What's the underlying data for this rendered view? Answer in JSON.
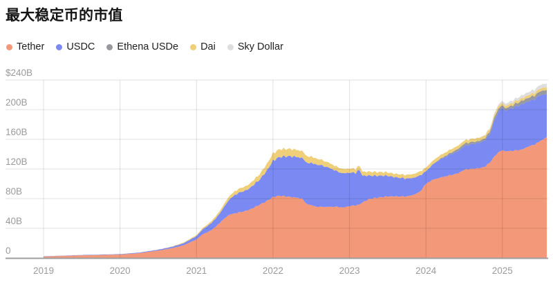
{
  "title": "最大稳定币的市值",
  "colors": {
    "grid": "rgba(0,0,0,0.12)",
    "baseline": "#9e9e9e",
    "tick_text": "#9b9b9b",
    "title_text": "#141414",
    "background": "#ffffff"
  },
  "chart_data": {
    "type": "area",
    "stacked": true,
    "title": "最大稳定币的市值",
    "unit": "billions USD",
    "legend_position": "top",
    "grid": true,
    "ylim": [
      0,
      240
    ],
    "xlim": [
      2019.0,
      2025.58
    ],
    "x": [
      2019.0,
      2019.25,
      2019.5,
      2019.75,
      2020.0,
      2020.25,
      2020.5,
      2020.67,
      2020.83,
      2021.0,
      2021.08,
      2021.17,
      2021.25,
      2021.33,
      2021.42,
      2021.5,
      2021.58,
      2021.67,
      2021.75,
      2021.83,
      2021.92,
      2022.0,
      2022.08,
      2022.17,
      2022.25,
      2022.33,
      2022.38,
      2022.42,
      2022.5,
      2022.58,
      2022.67,
      2022.75,
      2022.83,
      2022.92,
      2023.0,
      2023.08,
      2023.13,
      2023.17,
      2023.25,
      2023.33,
      2023.42,
      2023.5,
      2023.58,
      2023.67,
      2023.75,
      2023.83,
      2023.92,
      2024.0,
      2024.08,
      2024.17,
      2024.25,
      2024.33,
      2024.42,
      2024.5,
      2024.58,
      2024.67,
      2024.75,
      2024.83,
      2024.92,
      2025.0,
      2025.04,
      2025.08,
      2025.17,
      2025.25,
      2025.33,
      2025.42,
      2025.5,
      2025.58
    ],
    "series": [
      {
        "name": "Tether",
        "color": "#F39879",
        "values": [
          2,
          2.8,
          3.6,
          4.1,
          4.6,
          6.5,
          10,
          13,
          17,
          25,
          32,
          36,
          42,
          50,
          58,
          60,
          62,
          64,
          68,
          72,
          77,
          82,
          84,
          83,
          82,
          81,
          80,
          74,
          71,
          69,
          69,
          69,
          69,
          68,
          70,
          71,
          72,
          75,
          79,
          81,
          82,
          83,
          83,
          83,
          83,
          85,
          89,
          100,
          105,
          108,
          110,
          112,
          114,
          119,
          120,
          121,
          122,
          128,
          140,
          146,
          144,
          144,
          145,
          146,
          150,
          153,
          158,
          163
        ]
      },
      {
        "name": "USDC",
        "color": "#7A8AF2",
        "values": [
          0.3,
          0.35,
          0.45,
          0.5,
          0.6,
          0.8,
          1.2,
          1.8,
          2.8,
          4.5,
          6.5,
          9,
          11,
          14,
          20,
          25,
          27,
          28,
          31,
          34,
          41,
          49,
          52,
          54,
          55,
          55,
          55,
          55,
          57,
          57,
          55,
          52,
          48,
          46,
          45,
          44,
          47,
          36,
          32,
          30,
          29,
          28,
          26,
          25,
          24,
          23,
          22,
          17,
          20,
          24,
          26,
          28,
          30,
          32,
          33,
          34,
          35,
          38,
          52,
          58,
          55,
          56,
          59,
          61,
          61,
          61,
          62,
          58
        ]
      },
      {
        "name": "Ethena USDe",
        "color": "#97999E",
        "values": [
          0,
          0,
          0,
          0,
          0,
          0,
          0,
          0,
          0,
          0,
          0,
          0,
          0,
          0,
          0,
          0,
          0,
          0,
          0,
          0,
          0,
          0,
          0,
          0,
          0,
          0,
          0,
          0,
          0,
          0,
          0,
          0,
          0,
          0,
          0,
          0,
          0,
          0,
          0,
          0,
          0,
          0,
          0,
          0,
          0,
          0,
          0,
          0,
          0.3,
          0.8,
          1.5,
          2.3,
          2.8,
          3.2,
          3,
          2.6,
          2.7,
          3.2,
          4.5,
          3.5,
          3.4,
          3.3,
          4,
          4.5,
          4.8,
          5,
          5.3,
          5.5
        ]
      },
      {
        "name": "Dai",
        "color": "#EFCF7A",
        "values": [
          0.05,
          0.06,
          0.08,
          0.09,
          0.1,
          0.12,
          0.2,
          0.4,
          1,
          1.3,
          1.8,
          2.3,
          3,
          3.6,
          4.5,
          5,
          5.5,
          5.8,
          6.5,
          7.5,
          9,
          10,
          10.5,
          10,
          9.8,
          9.5,
          9.3,
          9,
          8.5,
          8,
          7,
          6.5,
          6,
          5.8,
          5.5,
          5.3,
          5.4,
          5.5,
          5.3,
          5,
          4.8,
          4.6,
          4.5,
          4.8,
          5,
          5.2,
          5.3,
          5,
          4.8,
          4.8,
          4.6,
          4.5,
          4.4,
          4.3,
          4.2,
          4.2,
          4,
          3.8,
          3.5,
          3.2,
          3.2,
          3.2,
          3.3,
          3.4,
          3.5,
          3.6,
          3.7,
          3.8
        ]
      },
      {
        "name": "Sky Dollar",
        "color": "#DEDEDE",
        "values": [
          0,
          0,
          0,
          0,
          0,
          0,
          0,
          0,
          0,
          0,
          0,
          0,
          0,
          0,
          0,
          0,
          0,
          0,
          0,
          0,
          0,
          0,
          0,
          0,
          0,
          0,
          0,
          0,
          0,
          0,
          0,
          0,
          0,
          0,
          0,
          0,
          0,
          0,
          0,
          0,
          0,
          0,
          0,
          0,
          0,
          0,
          0,
          0,
          0,
          0,
          0,
          0,
          0,
          0,
          0,
          0.3,
          0.6,
          1,
          2,
          2.8,
          3,
          3.2,
          3.5,
          4,
          4.2,
          4.5,
          4.8,
          5
        ]
      }
    ],
    "y_ticks": [
      {
        "label": "$240B",
        "value": 240
      },
      {
        "label": "200B",
        "value": 200
      },
      {
        "label": "160B",
        "value": 160
      },
      {
        "label": "120B",
        "value": 120
      },
      {
        "label": "80B",
        "value": 80
      },
      {
        "label": "40B",
        "value": 40
      },
      {
        "label": "0",
        "value": 0
      }
    ],
    "x_ticks": [
      {
        "label": "2019",
        "value": 2019
      },
      {
        "label": "2020",
        "value": 2020
      },
      {
        "label": "2021",
        "value": 2021
      },
      {
        "label": "2022",
        "value": 2022
      },
      {
        "label": "2023",
        "value": 2023
      },
      {
        "label": "2024",
        "value": 2024
      },
      {
        "label": "2025",
        "value": 2025
      }
    ]
  }
}
